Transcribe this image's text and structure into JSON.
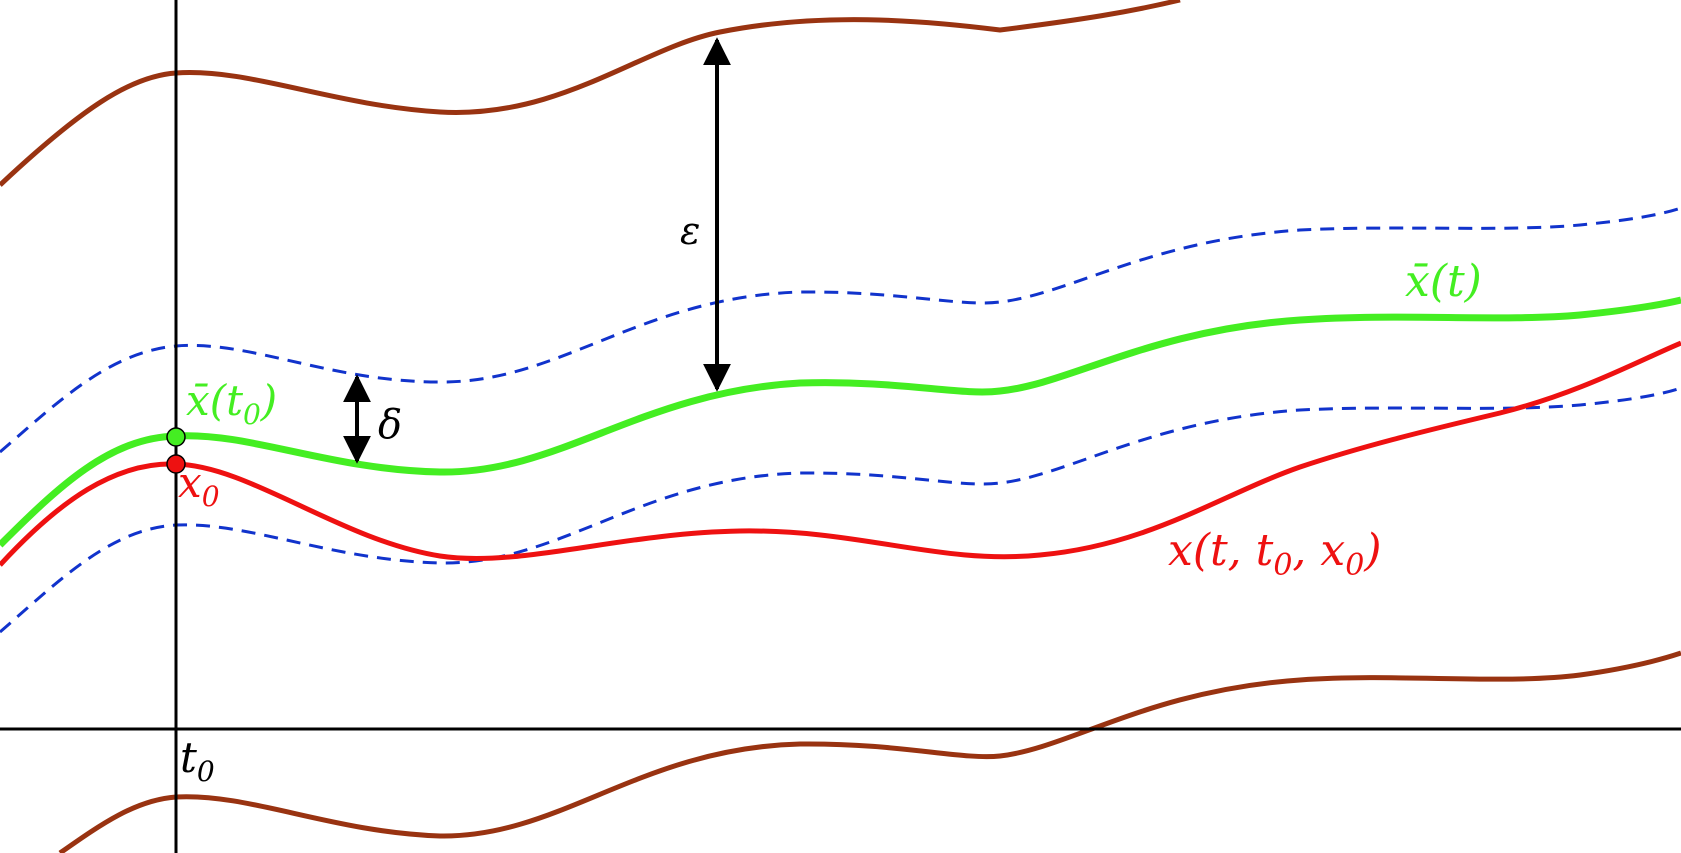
{
  "labels": {
    "epsilon": "ε",
    "delta": "δ",
    "xbar_t": {
      "base": "x̄",
      "rest": "(t)"
    },
    "xbar_t0": {
      "base": "x̄",
      "open": "(t",
      "sub": "0",
      "close": ")"
    },
    "x0": {
      "base": "x",
      "sub": "0"
    },
    "solution": {
      "open": "x(t, t",
      "sub1": "0",
      "mid": ", x",
      "sub2": "0",
      "close": ")"
    },
    "t0": {
      "base": "t",
      "sub": "0"
    }
  },
  "colors": {
    "axis": "#000000",
    "reference_solution": "#44ee22",
    "perturbed_solution": "#ee1111",
    "delta_band": "#1133cc",
    "epsilon_band": "#993311",
    "arrow": "#000000"
  }
}
